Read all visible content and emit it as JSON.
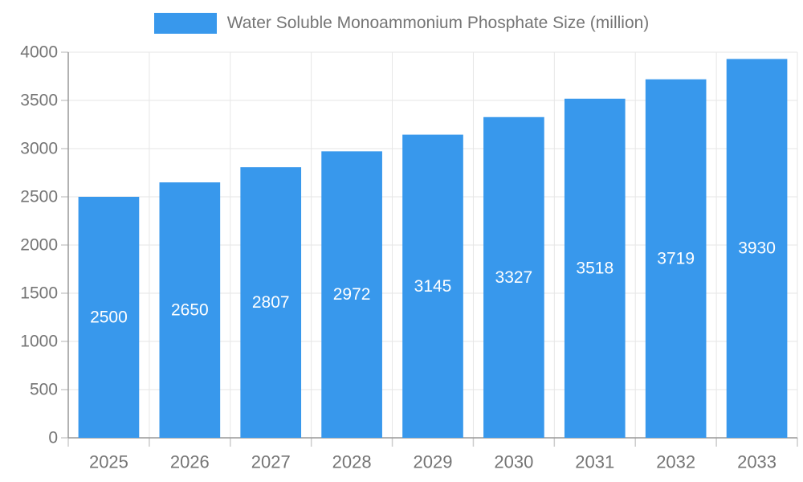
{
  "chart_data": {
    "type": "bar",
    "title": "",
    "series_name": "Water Soluble Monoammonium Phosphate Size (million)",
    "categories": [
      "2025",
      "2026",
      "2027",
      "2028",
      "2029",
      "2030",
      "2031",
      "2032",
      "2033"
    ],
    "values": [
      2500,
      2650,
      2807,
      2972,
      3145,
      3327,
      3518,
      3719,
      3930
    ],
    "xlabel": "",
    "ylabel": "",
    "ylim": [
      0,
      4000
    ],
    "ytick_interval": 500,
    "y_tick_labels": [
      "0",
      "500",
      "1000",
      "1500",
      "2000",
      "2500",
      "3000",
      "3500",
      "4000"
    ],
    "grid": true,
    "legend_position": "top",
    "value_labels_shown": true,
    "colors": {
      "bar": "#3898EC",
      "value_label": "#FFFFFF",
      "axis_text": "#757575",
      "axis_line": "#999999",
      "tick_line": "#CCCCCC",
      "gridline": "#E6E6E6",
      "background": "#FFFFFF"
    }
  }
}
